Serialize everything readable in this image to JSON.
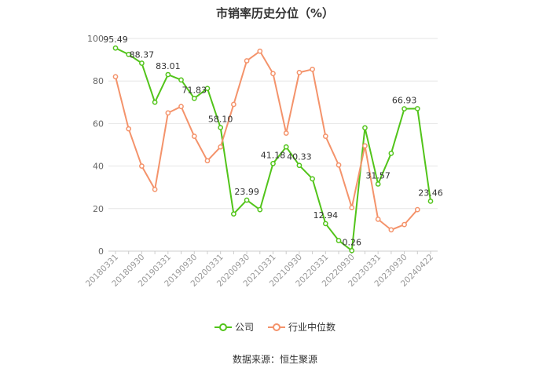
{
  "chart_data": {
    "type": "line",
    "title": "市销率历史分位（%）",
    "x": [
      "20180331",
      "20180630",
      "20180930",
      "20181231",
      "20190331",
      "20190630",
      "20190930",
      "20191231",
      "20200331",
      "20200630",
      "20200930",
      "20201231",
      "20210331",
      "20210630",
      "20210930",
      "20211231",
      "20220331",
      "20220630",
      "20220930",
      "20221231",
      "20230331",
      "20230630",
      "20230930",
      "20231231",
      "20240422"
    ],
    "xticks": [
      "20180331",
      "20180930",
      "20190331",
      "20190930",
      "20200331",
      "20200930",
      "20210331",
      "20210930",
      "20220331",
      "20220930",
      "20230331",
      "20230930",
      "20240422"
    ],
    "ylim": [
      0,
      100
    ],
    "yticks": [
      0,
      20,
      40,
      60,
      80,
      100
    ],
    "grid": true,
    "legend_position": "bottom",
    "series": [
      {
        "name": "公司",
        "color": "#52c41a",
        "values": [
          95.49,
          92.5,
          88.37,
          70,
          83.01,
          80.5,
          71.83,
          76.5,
          58.1,
          17.5,
          23.99,
          19.5,
          41.18,
          49,
          40.33,
          34,
          12.94,
          5,
          0.26,
          58,
          31.57,
          46,
          66.93,
          67,
          23.46
        ],
        "labels": {
          "0": "95.49",
          "2": "88.37",
          "4": "83.01",
          "6": "71.83",
          "8": "58.10",
          "10": "23.99",
          "12": "41.18",
          "14": "40.33",
          "16": "12.94",
          "18": "0.26",
          "20": "31.57",
          "22": "66.93",
          "24": "23.46"
        }
      },
      {
        "name": "行业中位数",
        "color": "#f4936b",
        "values": [
          82,
          57.5,
          40,
          29,
          65,
          68,
          54,
          42.5,
          49,
          69,
          89.5,
          94,
          83.5,
          55.5,
          84,
          85.5,
          54,
          40.5,
          20.5,
          49.5,
          15,
          10,
          12.5,
          19.5,
          null
        ]
      }
    ]
  },
  "source_text": "数据来源：恒生聚源"
}
